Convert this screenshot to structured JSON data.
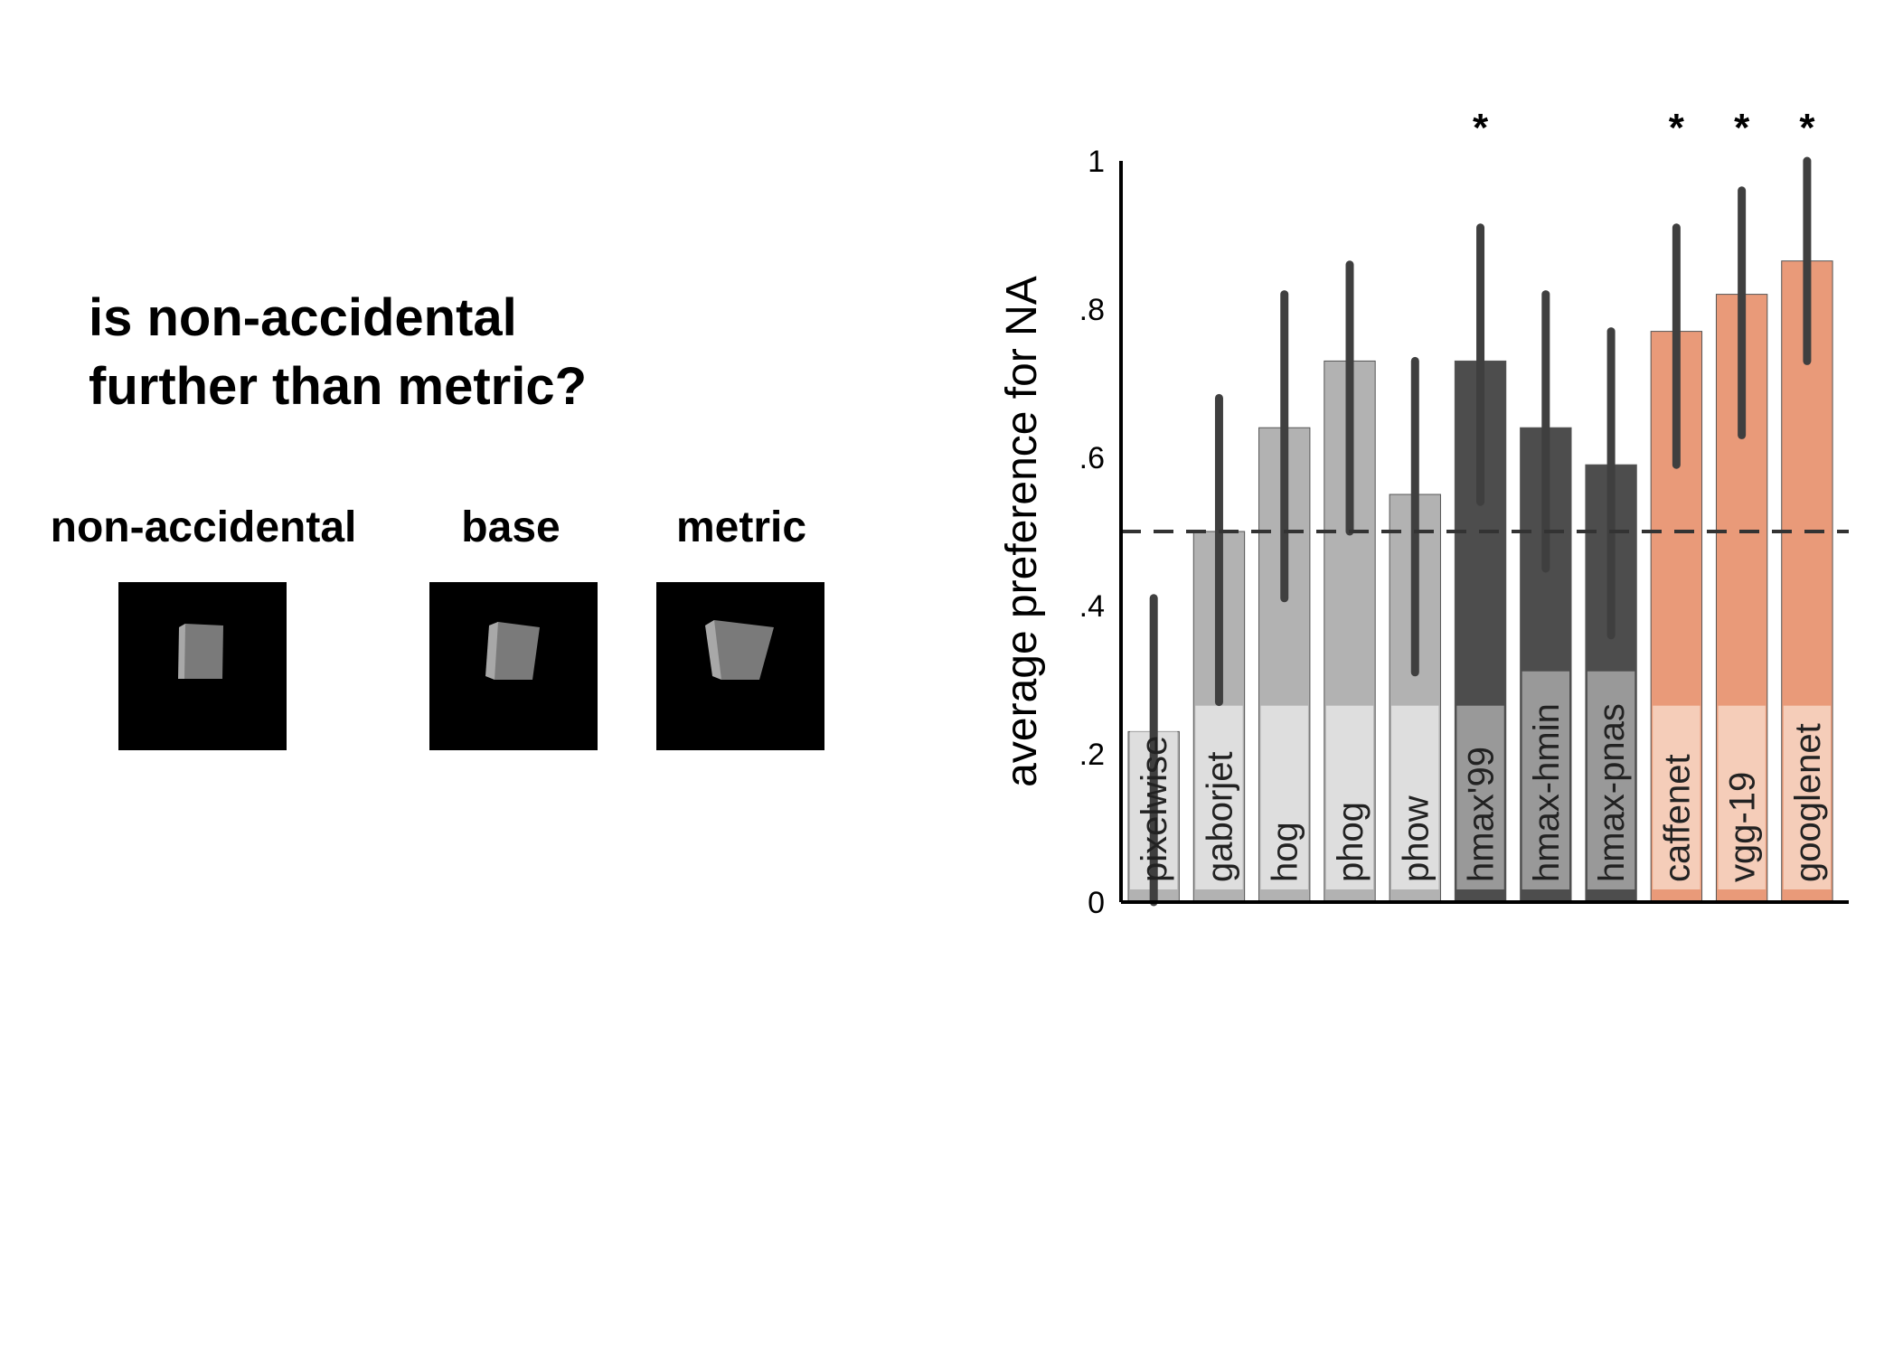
{
  "question": {
    "line1": "is non-accidental",
    "line2": "further than metric?"
  },
  "stimuli": [
    {
      "label": "non-accidental",
      "icon": "shape-non-accidental-icon"
    },
    {
      "label": "base",
      "icon": "shape-base-icon"
    },
    {
      "label": "metric",
      "icon": "shape-metric-icon"
    }
  ],
  "chart_data": {
    "type": "bar",
    "title": "",
    "xlabel": "",
    "ylabel": "average preference for NA",
    "ylim": [
      0,
      1
    ],
    "yticks": [
      0,
      0.2,
      0.4,
      0.6,
      0.8,
      1
    ],
    "ytick_labels": [
      "0",
      ".2",
      ".4",
      ".6",
      ".8",
      "1"
    ],
    "chance_line": 0.5,
    "categories": [
      "pixelwise",
      "gaborjet",
      "hog",
      "phog",
      "phow",
      "hmax'99",
      "hmax-hmin",
      "hmax-pnas",
      "caffenet",
      "vgg-19",
      "googlenet"
    ],
    "values": [
      0.23,
      0.5,
      0.64,
      0.73,
      0.55,
      0.73,
      0.64,
      0.59,
      0.77,
      0.82,
      0.865
    ],
    "error_low": [
      0.0,
      0.27,
      0.41,
      0.5,
      0.31,
      0.54,
      0.45,
      0.36,
      0.59,
      0.63,
      0.73
    ],
    "error_high": [
      0.41,
      0.68,
      0.82,
      0.86,
      0.73,
      0.91,
      0.82,
      0.77,
      0.91,
      0.96,
      1.0
    ],
    "significant": [
      false,
      false,
      false,
      false,
      false,
      true,
      false,
      false,
      true,
      true,
      true
    ],
    "significance_marker": "*",
    "group_colors": {
      "shallow": "#b2b2b2",
      "hmax": "#4d4d4d",
      "deep": "#e99a79"
    },
    "groups": [
      "shallow",
      "shallow",
      "shallow",
      "shallow",
      "shallow",
      "hmax",
      "hmax",
      "hmax",
      "deep",
      "deep",
      "deep"
    ],
    "label_box_colors": {
      "shallow": "#dedede",
      "hmax": "#999999",
      "deep": "#f5cdb9"
    },
    "grid": false,
    "legend": "none"
  }
}
